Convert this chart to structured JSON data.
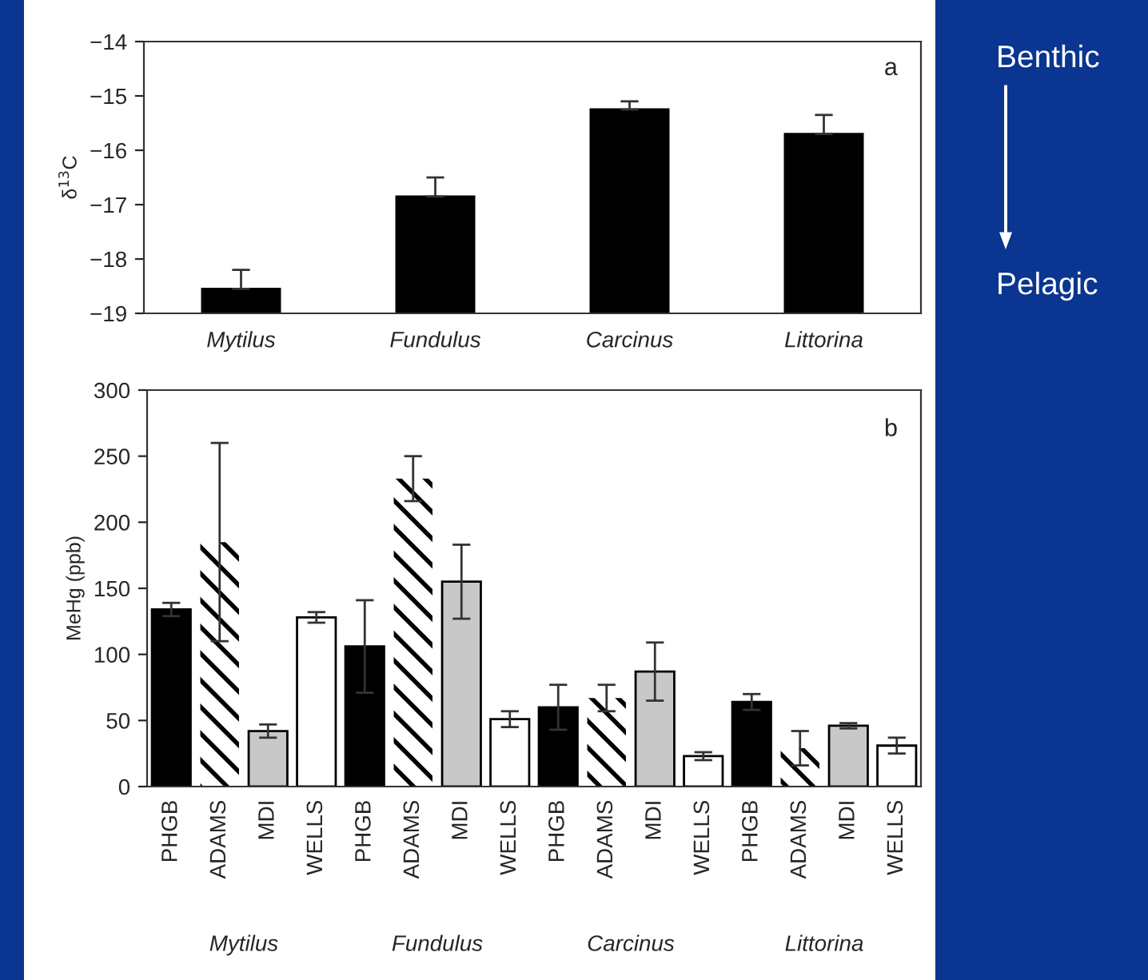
{
  "chart_data": [
    {
      "type": "bar",
      "ylabel": "δ$^{13}$C",
      "categories": [
        "Mytilus",
        "Fundulus",
        "Carcinus",
        "Littorina"
      ],
      "values": [
        0.45,
        2.15,
        3.75,
        3.3
      ],
      "base": [
        -19,
        -19,
        -19,
        -19
      ],
      "color": "#000000",
      "errors": [
        [
          -18.55,
          -18.2
        ],
        [
          -16.85,
          -16.5
        ],
        [
          -15.25,
          -15.1
        ],
        [
          -15.7,
          -15.35
        ]
      ],
      "ylim": [
        -19,
        -14
      ],
      "yticks": [
        {
          "value": -19,
          "label": "−19"
        },
        {
          "value": -18,
          "label": "−18"
        },
        {
          "value": -17,
          "label": "−17"
        },
        {
          "value": -16,
          "label": "−16"
        },
        {
          "value": -15,
          "label": "−15"
        },
        {
          "value": -14,
          "label": "−14"
        }
      ],
      "grid": false,
      "annotations": [
        "a",
        "Benthic",
        "Pelagic"
      ]
    },
    {
      "type": "bar",
      "ylabel": "MeHg (ppb)",
      "categories": [
        "Mytilus",
        "Fundulus",
        "Carcinus",
        "Littorina"
      ],
      "series": [
        {
          "name": "PHGB",
          "color": "#000000",
          "values": [
            134,
            106,
            60,
            64
          ],
          "errors": [
            5,
            35,
            17,
            6
          ]
        },
        {
          "name": "ADAMS",
          "color": "#ffffff",
          "values": [
            185,
            233,
            67,
            29
          ],
          "errors": [
            75,
            17,
            10,
            13
          ]
        },
        {
          "name": "MDI",
          "color": "#c8c8c8",
          "values": [
            42,
            155,
            87,
            46
          ],
          "errors": [
            5,
            28,
            22,
            2
          ]
        },
        {
          "name": "WELLS",
          "color": "#ffffff",
          "values": [
            128,
            51,
            23,
            31
          ],
          "errors": [
            4,
            6,
            3,
            6
          ]
        }
      ],
      "ylim": [
        0,
        300
      ],
      "yticks": [
        0,
        50,
        100,
        150,
        200,
        250,
        300
      ],
      "grid": false,
      "annotations": [
        "b"
      ]
    }
  ]
}
